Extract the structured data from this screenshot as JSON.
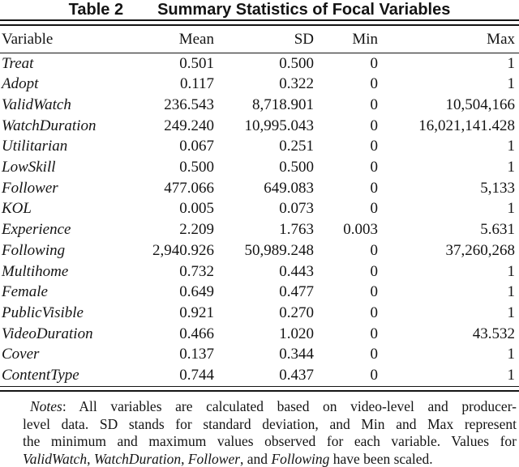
{
  "title": {
    "table_label": "Table 2",
    "table_caption": "Summary Statistics of Focal Variables"
  },
  "table": {
    "columns": [
      "Variable",
      "Mean",
      "SD",
      "Min",
      "Max"
    ],
    "rows": [
      [
        "Treat",
        "0.501",
        "0.500",
        "0",
        "1"
      ],
      [
        "Adopt",
        "0.117",
        "0.322",
        "0",
        "1"
      ],
      [
        "ValidWatch",
        "236.543",
        "8,718.901",
        "0",
        "10,504,166"
      ],
      [
        "WatchDuration",
        "249.240",
        "10,995.043",
        "0",
        "16,021,141.428"
      ],
      [
        "Utilitarian",
        "0.067",
        "0.251",
        "0",
        "1"
      ],
      [
        "LowSkill",
        "0.500",
        "0.500",
        "0",
        "1"
      ],
      [
        "Follower",
        "477.066",
        "649.083",
        "0",
        "5,133"
      ],
      [
        "KOL",
        "0.005",
        "0.073",
        "0",
        "1"
      ],
      [
        "Experience",
        "2.209",
        "1.763",
        "0.003",
        "5.631"
      ],
      [
        "Following",
        "2,940.926",
        "50,989.248",
        "0",
        "37,260,268"
      ],
      [
        "Multihome",
        "0.732",
        "0.443",
        "0",
        "1"
      ],
      [
        "Female",
        "0.649",
        "0.477",
        "0",
        "1"
      ],
      [
        "PublicVisible",
        "0.921",
        "0.270",
        "0",
        "1"
      ],
      [
        "VideoDuration",
        "0.466",
        "1.020",
        "0",
        "43.532"
      ],
      [
        "Cover",
        "0.137",
        "0.344",
        "0",
        "1"
      ],
      [
        "ContentType",
        "0.744",
        "0.437",
        "0",
        "1"
      ]
    ]
  },
  "notes": {
    "lines": [
      [
        {
          "text": "Notes",
          "italic": true
        },
        {
          "text": ": All variables are calculated based on video-level and producer-",
          "italic": false
        }
      ],
      [
        {
          "text": "level data. SD stands for standard deviation, and Min and Max represent",
          "italic": false
        }
      ],
      [
        {
          "text": "the minimum and maximum values observed for each variable. Values for",
          "italic": false
        }
      ],
      [
        {
          "text": "ValidWatch",
          "italic": true
        },
        {
          "text": ", ",
          "italic": false
        },
        {
          "text": "WatchDuration",
          "italic": true
        },
        {
          "text": ", ",
          "italic": false
        },
        {
          "text": "Follower",
          "italic": true
        },
        {
          "text": ", and ",
          "italic": false
        },
        {
          "text": "Following",
          "italic": true
        },
        {
          "text": " have been scaled.",
          "italic": false
        }
      ]
    ]
  },
  "colors": {
    "text": "#141414",
    "background": "#ffffff",
    "rule": "#141414"
  }
}
